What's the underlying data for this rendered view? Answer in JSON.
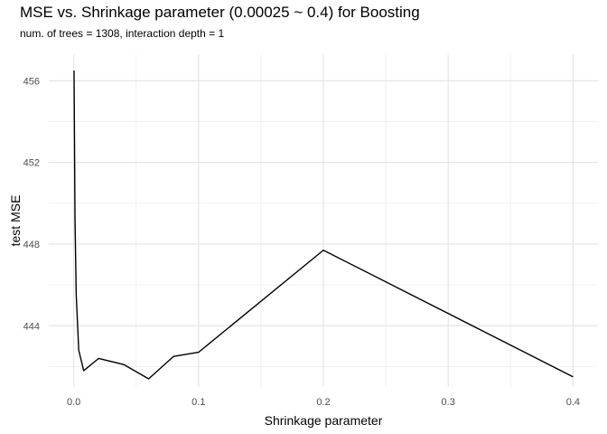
{
  "chart_data": {
    "type": "line",
    "title": "MSE vs. Shrinkage parameter (0.00025 ~ 0.4) for Boosting",
    "subtitle": "num. of trees = 1308, interaction depth = 1",
    "xlabel": "Shrinkage parameter",
    "ylabel": "test MSE",
    "xlim": [
      -0.02,
      0.42
    ],
    "ylim": [
      441.0,
      457.3
    ],
    "x_ticks": [
      0.0,
      0.1,
      0.2,
      0.3,
      0.4
    ],
    "x_tick_labels": [
      "0.0",
      "0.1",
      "0.2",
      "0.3",
      "0.4"
    ],
    "y_ticks": [
      444,
      448,
      452,
      456
    ],
    "y_tick_labels": [
      "444",
      "448",
      "452",
      "456"
    ],
    "grid": true,
    "line_color": "#000000",
    "series": [
      {
        "x": [
          0.00025,
          0.001,
          0.002,
          0.004,
          0.008,
          0.02,
          0.04,
          0.06,
          0.08,
          0.1,
          0.2,
          0.4
        ],
        "y": [
          456.5,
          449.3,
          445.5,
          442.8,
          441.8,
          442.4,
          442.1,
          441.4,
          442.5,
          442.7,
          447.7,
          441.5
        ]
      }
    ]
  }
}
